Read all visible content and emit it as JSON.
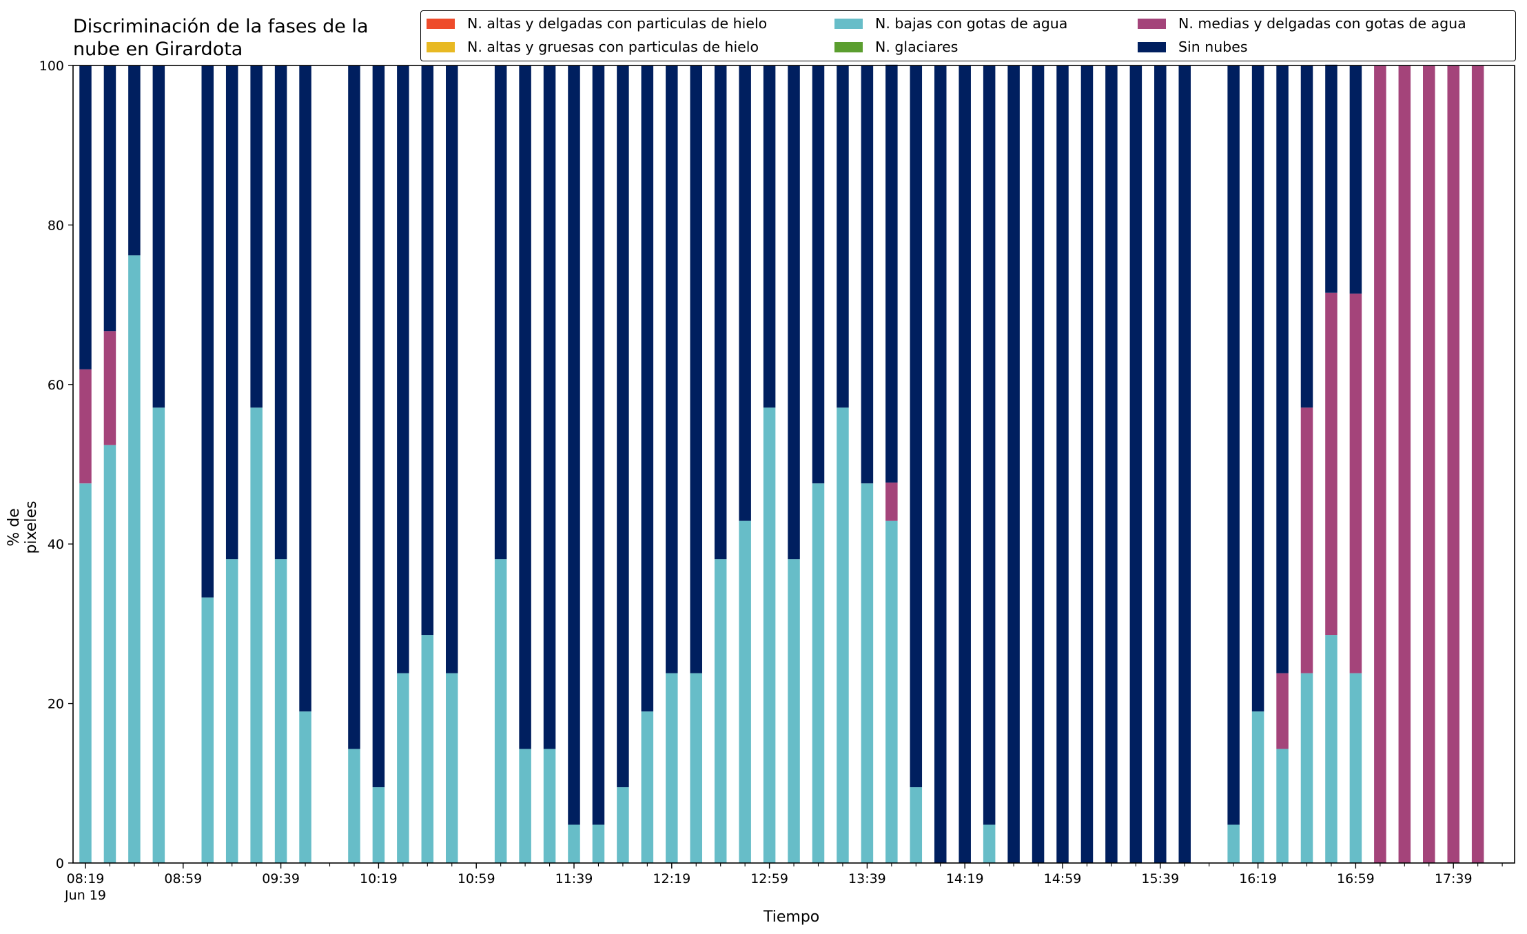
{
  "chart_data": {
    "type": "bar",
    "stacked": true,
    "title": "Discriminación de la fases de la\nnube en Girardota",
    "xlabel": "Tiempo",
    "ylabel": "% de pixeles",
    "ylim": [
      0,
      100
    ],
    "yticks": [
      "0",
      "20",
      "40",
      "60",
      "80",
      "100"
    ],
    "grid": false,
    "legend_position": "top-right",
    "x": [
      "08:19",
      "08:29",
      "08:39",
      "08:49",
      "08:59",
      "09:09",
      "09:19",
      "09:29",
      "09:39",
      "09:49",
      "09:59",
      "10:09",
      "10:19",
      "10:29",
      "10:39",
      "10:49",
      "10:59",
      "11:09",
      "11:19",
      "11:29",
      "11:39",
      "11:49",
      "11:59",
      "12:09",
      "12:19",
      "12:29",
      "12:39",
      "12:49",
      "12:59",
      "13:09",
      "13:19",
      "13:29",
      "13:39",
      "13:49",
      "13:59",
      "14:09",
      "14:19",
      "14:29",
      "14:39",
      "14:49",
      "14:59",
      "15:09",
      "15:19",
      "15:29",
      "15:39",
      "15:49",
      "15:59",
      "16:09",
      "16:19",
      "16:29",
      "16:39",
      "16:49",
      "16:59",
      "17:09",
      "17:19",
      "17:29",
      "17:39",
      "17:49"
    ],
    "xtick_labels": [
      "08:19\nJun 19",
      "08:59",
      "09:39",
      "10:19",
      "10:59",
      "11:39",
      "12:19",
      "12:59",
      "13:39",
      "14:19",
      "14:59",
      "15:39",
      "16:19",
      "16:59",
      "17:39"
    ],
    "series": [
      {
        "name": "N. altas y delgadas con particulas de hielo",
        "color": "#ee4b2b",
        "values": [
          0,
          0,
          0,
          0,
          null,
          0,
          0,
          0,
          0,
          0,
          null,
          0,
          0,
          0,
          0,
          0,
          null,
          0,
          0,
          0,
          0,
          0,
          0,
          0,
          0,
          0,
          0,
          0,
          0,
          0,
          0,
          0,
          0,
          0,
          0,
          0,
          0,
          0,
          0,
          0,
          0,
          0,
          0,
          0,
          0,
          0,
          null,
          0,
          0,
          0,
          0,
          0,
          0,
          0,
          0,
          0,
          0,
          0
        ]
      },
      {
        "name": "N. altas y gruesas con particulas de hielo",
        "color": "#e8b923",
        "values": [
          0,
          0,
          0,
          0,
          null,
          0,
          0,
          0,
          0,
          0,
          null,
          0,
          0,
          0,
          0,
          0,
          null,
          0,
          0,
          0,
          0,
          0,
          0,
          0,
          0,
          0,
          0,
          0,
          0,
          0,
          0,
          0,
          0,
          0,
          0,
          0,
          0,
          0,
          0,
          0,
          0,
          0,
          0,
          0,
          0,
          0,
          null,
          0,
          0,
          0,
          0,
          0,
          0,
          0,
          0,
          0,
          0,
          0
        ]
      },
      {
        "name": "N. bajas con gotas de agua",
        "color": "#67bdc8",
        "values": [
          47.6,
          52.4,
          76.2,
          57.1,
          null,
          33.3,
          38.1,
          57.1,
          38.1,
          19.0,
          null,
          14.3,
          9.5,
          23.8,
          28.6,
          23.8,
          null,
          38.1,
          14.3,
          14.3,
          4.8,
          4.8,
          9.5,
          19.0,
          23.8,
          23.8,
          38.1,
          42.9,
          57.1,
          38.1,
          47.6,
          57.1,
          47.6,
          42.9,
          9.5,
          0,
          0,
          4.8,
          0,
          0,
          0,
          0,
          0,
          0,
          0,
          0,
          null,
          4.8,
          19.0,
          14.3,
          23.8,
          28.6,
          23.8,
          0,
          0,
          0,
          0,
          0
        ]
      },
      {
        "name": "N. glaciares",
        "color": "#5b9e2f",
        "values": [
          0,
          0,
          0,
          0,
          null,
          0,
          0,
          0,
          0,
          0,
          null,
          0,
          0,
          0,
          0,
          0,
          null,
          0,
          0,
          0,
          0,
          0,
          0,
          0,
          0,
          0,
          0,
          0,
          0,
          0,
          0,
          0,
          0,
          0,
          0,
          0,
          0,
          0,
          0,
          0,
          0,
          0,
          0,
          0,
          0,
          0,
          null,
          0,
          0,
          0,
          0,
          0,
          0,
          0,
          0,
          0,
          0,
          0
        ]
      },
      {
        "name": "N. medias y delgadas con gotas de agua",
        "color": "#a4447a",
        "values": [
          14.3,
          14.3,
          0,
          0,
          null,
          0,
          0,
          0,
          0,
          0,
          null,
          0,
          0,
          0,
          0,
          0,
          null,
          0,
          0,
          0,
          0,
          0,
          0,
          0,
          0,
          0,
          0,
          0,
          0,
          0,
          0,
          0,
          0,
          4.8,
          0,
          0,
          0,
          0,
          0,
          0,
          0,
          0,
          0,
          0,
          0,
          0,
          null,
          0,
          0,
          9.5,
          33.3,
          42.9,
          47.6,
          100,
          100,
          100,
          100,
          100
        ]
      },
      {
        "name": "Sin nubes",
        "color": "#001f5f",
        "values": [
          38.1,
          33.3,
          23.8,
          42.9,
          null,
          66.7,
          61.9,
          42.9,
          61.9,
          81.0,
          null,
          85.7,
          90.5,
          76.2,
          71.4,
          76.2,
          null,
          61.9,
          85.7,
          85.7,
          95.2,
          95.2,
          90.5,
          81.0,
          76.2,
          76.2,
          61.9,
          57.1,
          42.9,
          61.9,
          52.4,
          42.9,
          52.4,
          52.4,
          90.5,
          100,
          100,
          95.2,
          100,
          100,
          100,
          100,
          100,
          100,
          100,
          100,
          null,
          95.2,
          81.0,
          76.2,
          42.9,
          28.6,
          28.6,
          0,
          0,
          0,
          0,
          0
        ]
      }
    ]
  }
}
